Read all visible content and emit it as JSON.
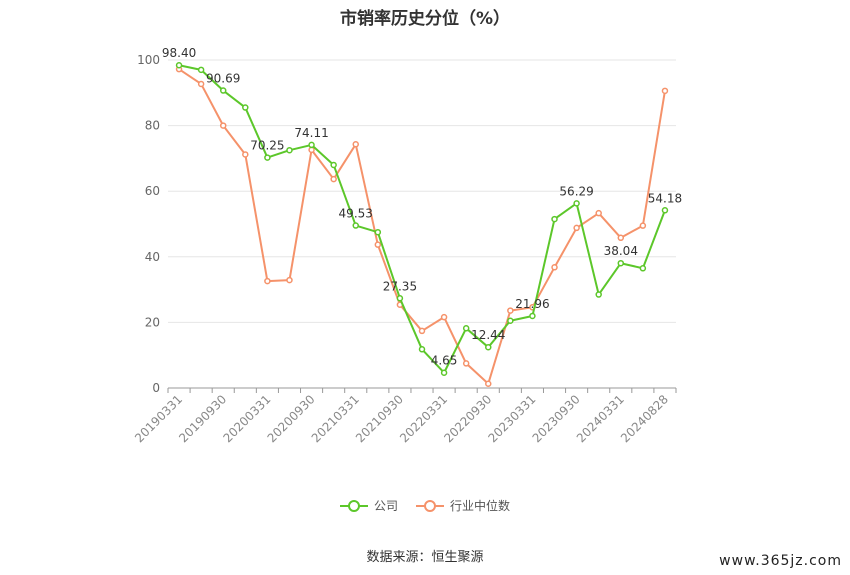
{
  "title": "市销率历史分位（%）",
  "source": "数据来源：恒生聚源",
  "watermark": "www.365jz.com",
  "colors": {
    "company": "#5cc72a",
    "industry": "#f5926a",
    "grid": "#e6e6e6",
    "axis": "#999999"
  },
  "chart_data": {
    "type": "line",
    "title": "市销率历史分位（%）",
    "ylim": [
      0,
      100
    ],
    "yticks": [
      0,
      20,
      40,
      60,
      80,
      100
    ],
    "grid": true,
    "legend_position": "bottom",
    "x_tick_labels": [
      "20190331",
      "20190930",
      "20200331",
      "20200930",
      "20210331",
      "20210930",
      "20220331",
      "20220930",
      "20230331",
      "20230930",
      "20240331",
      "20240828"
    ],
    "x_tick_indices": [
      0,
      2,
      4,
      6,
      8,
      10,
      12,
      14,
      16,
      18,
      20,
      22
    ],
    "series": [
      {
        "name": "公司",
        "color": "#5cc72a",
        "values": [
          98.4,
          97.0,
          90.69,
          85.5,
          70.25,
          72.5,
          74.11,
          68.0,
          49.53,
          47.5,
          27.35,
          11.8,
          4.65,
          18.2,
          12.44,
          20.5,
          21.96,
          51.5,
          56.29,
          28.5,
          38.04,
          36.5,
          54.18
        ],
        "labels": {
          "0": "98.40",
          "2": "90.69",
          "4": "70.25",
          "6": "74.11",
          "8": "49.53",
          "10": "27.35",
          "12": "4.65",
          "14": "12.44",
          "16": "21.96",
          "18": "56.29",
          "20": "38.04",
          "22": "54.18"
        }
      },
      {
        "name": "行业中位数",
        "color": "#f5926a",
        "values": [
          97.2,
          92.7,
          80.0,
          71.2,
          32.6,
          32.9,
          72.6,
          63.7,
          74.3,
          43.7,
          25.4,
          17.4,
          21.6,
          7.5,
          1.3,
          23.6,
          24.6,
          36.8,
          48.8,
          53.3,
          45.8,
          49.5,
          90.6
        ]
      }
    ]
  }
}
